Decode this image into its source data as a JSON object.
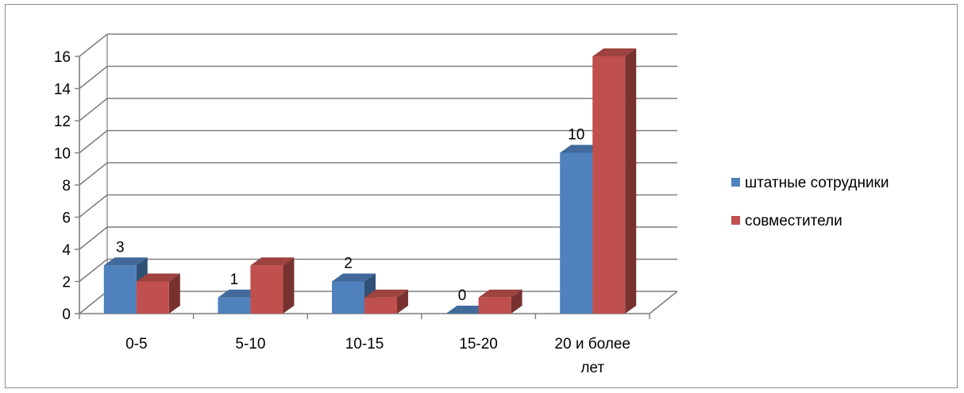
{
  "chart_data": {
    "type": "bar",
    "subtype": "3d-clustered-column",
    "title": "",
    "xlabel": "",
    "ylabel": "",
    "categories": [
      "0-5",
      "5-10",
      "10-15",
      "15-20",
      "20 и более лет"
    ],
    "series": [
      {
        "name": "штатные сотрудники",
        "values": [
          3,
          1,
          2,
          0,
          10
        ],
        "color": "#4f81bd",
        "data_labels": [
          "3",
          "1",
          "2",
          "0",
          "10"
        ]
      },
      {
        "name": "совместители",
        "values": [
          2,
          3,
          1,
          1,
          16
        ],
        "color": "#c0504d"
      }
    ],
    "ylim": [
      0,
      16
    ],
    "yticks": [
      "0",
      "2",
      "4",
      "6",
      "8",
      "10",
      "12",
      "14",
      "16"
    ],
    "grid": true,
    "legend_position": "right"
  }
}
